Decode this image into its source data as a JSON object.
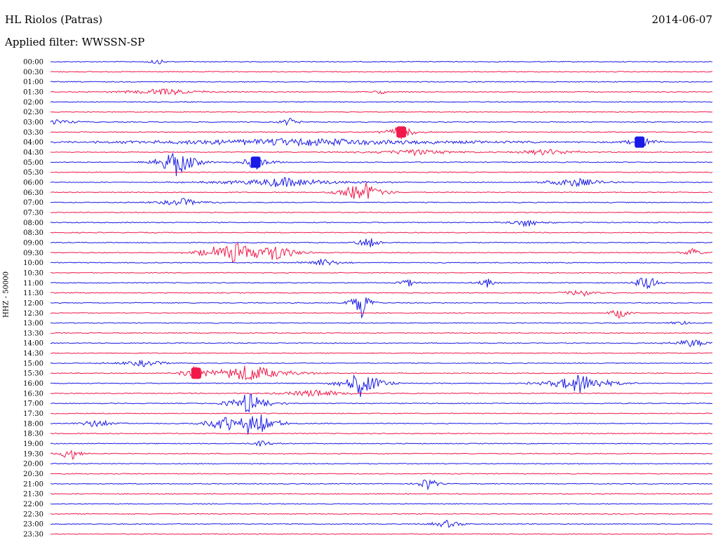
{
  "header": {
    "station": "HL Riolos (Patras)",
    "date": "2014-06-07",
    "filter": "Applied filter: WWSSN-SP",
    "channel": "HHZ - 50000"
  },
  "colors": {
    "blue": "#1a1ae6",
    "red": "#f0194a"
  },
  "chart_data": {
    "type": "line",
    "title": "HL Riolos (Patras)",
    "ylabel": "HHZ - 50000",
    "trace_minutes": 30,
    "rows": [
      "00:00",
      "00:30",
      "01:00",
      "01:30",
      "02:00",
      "02:30",
      "03:00",
      "03:30",
      "04:00",
      "04:30",
      "05:00",
      "05:30",
      "06:00",
      "06:30",
      "07:00",
      "07:30",
      "08:00",
      "08:30",
      "09:00",
      "09:30",
      "10:00",
      "10:30",
      "11:00",
      "11:30",
      "12:00",
      "12:30",
      "13:00",
      "13:30",
      "14:00",
      "14:30",
      "15:00",
      "15:30",
      "16:00",
      "16:30",
      "17:00",
      "17:30",
      "18:00",
      "18:30",
      "19:00",
      "19:30",
      "20:00",
      "20:30",
      "21:00",
      "21:30",
      "22:00",
      "22:30",
      "23:00",
      "23:30"
    ],
    "row_colors": [
      "blue",
      "red"
    ],
    "events": [
      {
        "row": "00:00",
        "t": 0.16,
        "amp": 0.5,
        "dur": 0.01
      },
      {
        "row": "01:30",
        "t": 0.17,
        "amp": 0.6,
        "dur": 0.04
      },
      {
        "row": "01:30",
        "t": 0.5,
        "amp": 0.4,
        "dur": 0.01
      },
      {
        "row": "03:00",
        "t": 0.01,
        "amp": 0.5,
        "dur": 0.02
      },
      {
        "row": "03:00",
        "t": 0.36,
        "amp": 0.7,
        "dur": 0.01
      },
      {
        "row": "03:30",
        "t": 0.53,
        "amp": 1.0,
        "dur": 0.015,
        "block": true
      },
      {
        "row": "04:00",
        "t": 0.89,
        "amp": 1.0,
        "dur": 0.015,
        "block": true
      },
      {
        "row": "04:00",
        "t": 0.38,
        "amp": 0.6,
        "dur": 0.2
      },
      {
        "row": "04:30",
        "t": 0.55,
        "amp": 0.5,
        "dur": 0.05
      },
      {
        "row": "04:30",
        "t": 0.75,
        "amp": 0.5,
        "dur": 0.04
      },
      {
        "row": "05:00",
        "t": 0.19,
        "amp": 2.2,
        "dur": 0.02
      },
      {
        "row": "05:00",
        "t": 0.31,
        "amp": 1.0,
        "dur": 0.015,
        "block": true
      },
      {
        "row": "06:00",
        "t": 0.35,
        "amp": 0.8,
        "dur": 0.06
      },
      {
        "row": "06:00",
        "t": 0.79,
        "amp": 0.8,
        "dur": 0.03
      },
      {
        "row": "06:30",
        "t": 0.47,
        "amp": 2.0,
        "dur": 0.02
      },
      {
        "row": "07:00",
        "t": 0.2,
        "amp": 0.6,
        "dur": 0.03
      },
      {
        "row": "08:00",
        "t": 0.72,
        "amp": 0.7,
        "dur": 0.02
      },
      {
        "row": "09:00",
        "t": 0.48,
        "amp": 1.2,
        "dur": 0.01
      },
      {
        "row": "09:30",
        "t": 0.24,
        "amp": 0.8,
        "dur": 0.02
      },
      {
        "row": "09:30",
        "t": 0.28,
        "amp": 2.2,
        "dur": 0.02
      },
      {
        "row": "09:30",
        "t": 0.34,
        "amp": 1.6,
        "dur": 0.02
      },
      {
        "row": "09:30",
        "t": 0.97,
        "amp": 0.7,
        "dur": 0.01
      },
      {
        "row": "10:00",
        "t": 0.41,
        "amp": 0.7,
        "dur": 0.02
      },
      {
        "row": "11:00",
        "t": 0.54,
        "amp": 0.7,
        "dur": 0.01
      },
      {
        "row": "11:00",
        "t": 0.66,
        "amp": 0.7,
        "dur": 0.01
      },
      {
        "row": "11:00",
        "t": 0.9,
        "amp": 2.0,
        "dur": 0.01
      },
      {
        "row": "11:30",
        "t": 0.8,
        "amp": 0.6,
        "dur": 0.02
      },
      {
        "row": "12:00",
        "t": 0.47,
        "amp": 2.4,
        "dur": 0.01
      },
      {
        "row": "12:30",
        "t": 0.86,
        "amp": 0.9,
        "dur": 0.01
      },
      {
        "row": "13:00",
        "t": 0.95,
        "amp": 0.5,
        "dur": 0.01
      },
      {
        "row": "14:00",
        "t": 0.97,
        "amp": 0.7,
        "dur": 0.02
      },
      {
        "row": "15:00",
        "t": 0.14,
        "amp": 0.5,
        "dur": 0.03
      },
      {
        "row": "15:30",
        "t": 0.22,
        "amp": 1.0,
        "dur": 0.015,
        "block": true
      },
      {
        "row": "15:30",
        "t": 0.3,
        "amp": 1.4,
        "dur": 0.04
      },
      {
        "row": "16:00",
        "t": 0.47,
        "amp": 2.2,
        "dur": 0.02
      },
      {
        "row": "16:00",
        "t": 0.8,
        "amp": 1.6,
        "dur": 0.03
      },
      {
        "row": "16:30",
        "t": 0.4,
        "amp": 0.6,
        "dur": 0.04
      },
      {
        "row": "17:00",
        "t": 0.3,
        "amp": 1.8,
        "dur": 0.02
      },
      {
        "row": "18:00",
        "t": 0.07,
        "amp": 0.7,
        "dur": 0.02
      },
      {
        "row": "18:00",
        "t": 0.26,
        "amp": 1.2,
        "dur": 0.02
      },
      {
        "row": "18:00",
        "t": 0.3,
        "amp": 1.5,
        "dur": 0.02
      },
      {
        "row": "18:00",
        "t": 0.32,
        "amp": 1.3,
        "dur": 0.02
      },
      {
        "row": "19:00",
        "t": 0.32,
        "amp": 0.8,
        "dur": 0.01
      },
      {
        "row": "19:30",
        "t": 0.03,
        "amp": 1.3,
        "dur": 0.01
      },
      {
        "row": "21:00",
        "t": 0.57,
        "amp": 1.2,
        "dur": 0.01
      },
      {
        "row": "23:00",
        "t": 0.6,
        "amp": 0.6,
        "dur": 0.02
      }
    ]
  }
}
